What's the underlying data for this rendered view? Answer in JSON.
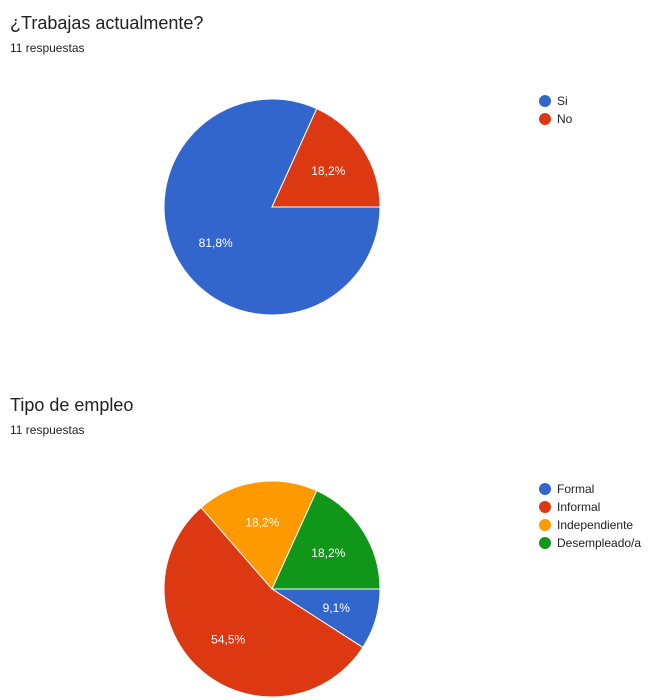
{
  "chart_data": [
    {
      "type": "pie",
      "title": "¿Trabajas actualmente?",
      "subtitle": "11 respuestas",
      "legend_position": "right",
      "categories": [
        "Si",
        "No"
      ],
      "values": [
        81.8,
        18.2
      ],
      "labels": [
        "81,8%",
        "18,2%"
      ],
      "colors": [
        "#3366cc",
        "#dc3912"
      ]
    },
    {
      "type": "pie",
      "title": "Tipo de empleo",
      "subtitle": "11 respuestas",
      "legend_position": "right",
      "categories": [
        "Formal",
        "Informal",
        "Independiente",
        "Desempleado/a"
      ],
      "values": [
        9.1,
        54.5,
        18.2,
        18.2
      ],
      "labels": [
        "9,1%",
        "54,5%",
        "18,2%",
        "18,2%"
      ],
      "colors": [
        "#3366cc",
        "#dc3912",
        "#ff9900",
        "#109618"
      ]
    }
  ]
}
